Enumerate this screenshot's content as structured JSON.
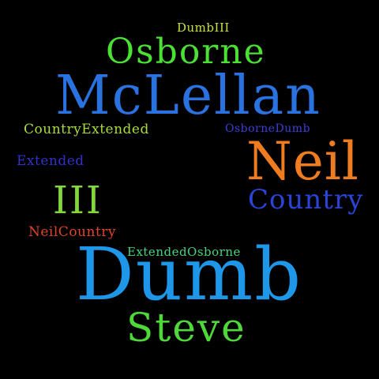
{
  "canvas": {
    "background": "#000000"
  },
  "words": {
    "dumbiii": {
      "text": "DumbIII",
      "color": "#c8e43a"
    },
    "osborne": {
      "text": "Osborne",
      "color": "#4be034"
    },
    "mclellan": {
      "text": "McLellan",
      "color": "#2a72e0"
    },
    "countryextended": {
      "text": "CountryExtended",
      "color": "#a9dd3a"
    },
    "osbornedumb": {
      "text": "OsborneDumb",
      "color": "#3f3fd6"
    },
    "neil": {
      "text": "Neil",
      "color": "#ef7d20"
    },
    "extended": {
      "text": "Extended",
      "color": "#3032c9"
    },
    "iii": {
      "text": "III",
      "color": "#82d83a"
    },
    "country": {
      "text": "Country",
      "color": "#2b44d8"
    },
    "neilcountry": {
      "text": "NeilCountry",
      "color": "#e0452b"
    },
    "extendedosborne": {
      "text": "ExtendedOsborne",
      "color": "#45d67e"
    },
    "dumb": {
      "text": "Dumb",
      "color": "#1e97e8"
    },
    "steve": {
      "text": "Steve",
      "color": "#4fd83a"
    }
  }
}
